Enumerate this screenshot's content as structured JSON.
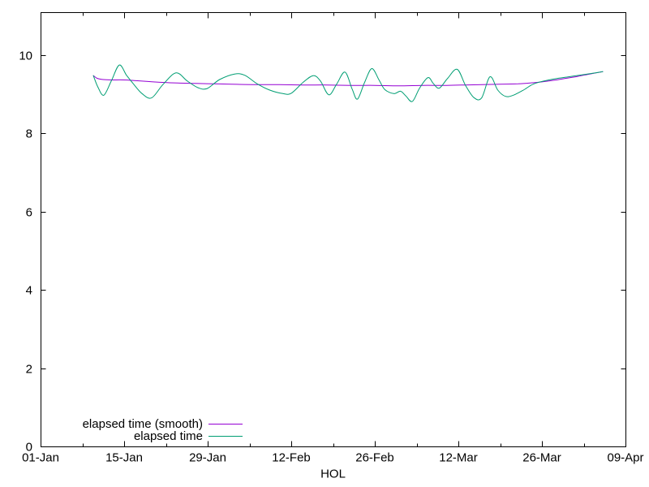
{
  "chart_data": {
    "type": "line",
    "title": "",
    "xlabel": "HOL",
    "ylabel": "",
    "background_color": "#ffffff",
    "axis_color": "#000000",
    "grid": false,
    "x_axis": {
      "x_unit": "days-since-01-Jan",
      "range_days": [
        0,
        98
      ],
      "major_tick_days": [
        0,
        14,
        28,
        42,
        56,
        70,
        84,
        98
      ],
      "minor_tick_days": [
        7,
        21,
        35,
        49,
        63,
        77,
        91
      ],
      "tick_labels": [
        "01-Jan",
        "15-Jan",
        "29-Jan",
        "12-Feb",
        "26-Feb",
        "12-Mar",
        "26-Mar",
        "09-Apr"
      ]
    },
    "y_axis": {
      "range": [
        0,
        11.09
      ],
      "major_ticks": [
        0,
        2,
        4,
        6,
        8,
        10
      ],
      "tick_labels": [
        "0",
        "2",
        "4",
        "6",
        "8",
        "10"
      ]
    },
    "legend": {
      "position": "bottom-left-inside",
      "entries": [
        {
          "label": "elapsed time (smooth)",
          "color": "#9400D3"
        },
        {
          "label": "elapsed time",
          "color": "#009E73"
        }
      ]
    },
    "series": [
      {
        "name": "elapsed time (smooth)",
        "color": "#9400D3",
        "points_day_value": [
          [
            8.85,
            9.47
          ],
          [
            9.5,
            9.4
          ],
          [
            10.5,
            9.37
          ],
          [
            12,
            9.36
          ],
          [
            14,
            9.36
          ],
          [
            16,
            9.34
          ],
          [
            18,
            9.32
          ],
          [
            20,
            9.3
          ],
          [
            23,
            9.28
          ],
          [
            26,
            9.27
          ],
          [
            29,
            9.26
          ],
          [
            32,
            9.25
          ],
          [
            36,
            9.24
          ],
          [
            40,
            9.24
          ],
          [
            44,
            9.23
          ],
          [
            48,
            9.23
          ],
          [
            52,
            9.22
          ],
          [
            56,
            9.22
          ],
          [
            60,
            9.21
          ],
          [
            64,
            9.22
          ],
          [
            68,
            9.22
          ],
          [
            71,
            9.23
          ],
          [
            74,
            9.24
          ],
          [
            77,
            9.25
          ],
          [
            80,
            9.26
          ],
          [
            82,
            9.28
          ],
          [
            84,
            9.31
          ],
          [
            86,
            9.35
          ],
          [
            88,
            9.4
          ],
          [
            90,
            9.45
          ],
          [
            92,
            9.51
          ],
          [
            94.2,
            9.57
          ]
        ]
      },
      {
        "name": "elapsed time",
        "color": "#009E73",
        "points_day_value": [
          [
            8.85,
            9.47
          ],
          [
            9.6,
            9.18
          ],
          [
            10.6,
            8.97
          ],
          [
            11.9,
            9.35
          ],
          [
            13.2,
            9.74
          ],
          [
            14.4,
            9.48
          ],
          [
            15.5,
            9.27
          ],
          [
            17.0,
            9.01
          ],
          [
            18.6,
            8.9
          ],
          [
            20.5,
            9.24
          ],
          [
            22.7,
            9.54
          ],
          [
            24.6,
            9.33
          ],
          [
            26.4,
            9.16
          ],
          [
            27.9,
            9.14
          ],
          [
            30.0,
            9.37
          ],
          [
            32.5,
            9.51
          ],
          [
            34.2,
            9.48
          ],
          [
            36.3,
            9.26
          ],
          [
            38.4,
            9.1
          ],
          [
            40.6,
            9.01
          ],
          [
            42.0,
            9.02
          ],
          [
            44.0,
            9.3
          ],
          [
            45.7,
            9.47
          ],
          [
            46.9,
            9.33
          ],
          [
            48.3,
            8.98
          ],
          [
            49.6,
            9.25
          ],
          [
            51.0,
            9.56
          ],
          [
            52.2,
            9.13
          ],
          [
            53.1,
            8.87
          ],
          [
            54.3,
            9.3
          ],
          [
            55.5,
            9.65
          ],
          [
            56.7,
            9.36
          ],
          [
            57.7,
            9.11
          ],
          [
            59.2,
            9.01
          ],
          [
            60.3,
            9.07
          ],
          [
            61.2,
            8.95
          ],
          [
            62.3,
            8.81
          ],
          [
            63.5,
            9.15
          ],
          [
            64.9,
            9.42
          ],
          [
            65.8,
            9.27
          ],
          [
            66.8,
            9.15
          ],
          [
            68.2,
            9.4
          ],
          [
            69.8,
            9.63
          ],
          [
            71.2,
            9.22
          ],
          [
            72.6,
            8.91
          ],
          [
            73.9,
            8.9
          ],
          [
            75.3,
            9.44
          ],
          [
            76.6,
            9.1
          ],
          [
            77.9,
            8.94
          ],
          [
            79.2,
            8.97
          ],
          [
            80.9,
            9.1
          ],
          [
            82.5,
            9.25
          ],
          [
            84.3,
            9.33
          ],
          [
            86.3,
            9.39
          ],
          [
            88.5,
            9.44
          ],
          [
            90.7,
            9.49
          ],
          [
            92.5,
            9.53
          ],
          [
            94.2,
            9.57
          ]
        ]
      }
    ]
  }
}
